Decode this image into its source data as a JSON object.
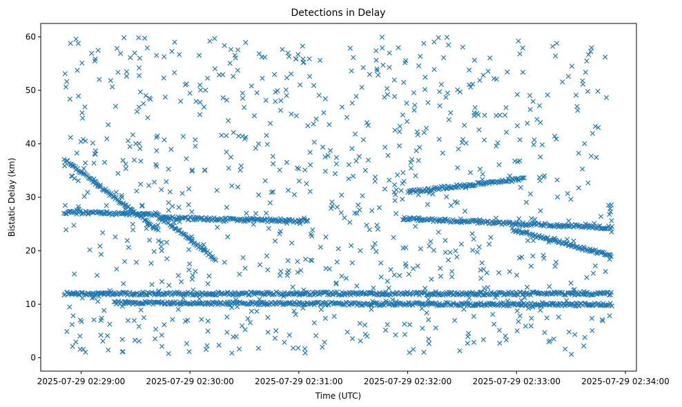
{
  "chart_data": {
    "type": "scatter",
    "title": "Detections in Delay",
    "xlabel": "Time (UTC)",
    "ylabel": "Bistatic Delay (km)",
    "marker": "x",
    "color": "#1f77b4",
    "xlim_seconds": [
      -45,
      5
    ],
    "ylim": [
      -2.5,
      62.5
    ],
    "x_ticks": [
      {
        "t": -44,
        "label": "2025-07-29 02:29:00"
      },
      {
        "t": -34,
        "label": "2025-07-29 02:30:00"
      },
      {
        "t": -24,
        "label": "2025-07-29 02:31:00"
      },
      {
        "t": -14,
        "label": "2025-07-29 02:32:00"
      },
      {
        "t": -4,
        "label": "2025-07-29 02:33:00"
      },
      {
        "t": 6,
        "label": "2025-07-29 02:34:00"
      }
    ],
    "y_ticks": [
      0,
      10,
      20,
      30,
      40,
      50,
      60
    ],
    "tracks": [
      {
        "name": "track-descending-a",
        "t": [
          0.0,
          9.4
        ],
        "y": [
          37.0,
          24.0
        ]
      },
      {
        "name": "track-descending-b",
        "t": [
          9.8,
          15.2
        ],
        "y": [
          26.0,
          18.5
        ]
      },
      {
        "name": "track-flat-26",
        "t": [
          9.5,
          24.5
        ],
        "y": [
          26.2,
          25.5
        ]
      },
      {
        "name": "track-ascending",
        "t": [
          34.5,
          46.2
        ],
        "y": [
          31.0,
          33.5
        ]
      },
      {
        "name": "track-flat-25",
        "t": [
          34.0,
          55.0
        ],
        "y": [
          26.0,
          24.3
        ]
      },
      {
        "name": "track-descending-c",
        "t": [
          45.0,
          55.0
        ],
        "y": [
          24.0,
          19.0
        ]
      },
      {
        "name": "track-flat-27",
        "t": [
          0.0,
          9.5
        ],
        "y": [
          27.2,
          26.8
        ]
      },
      {
        "name": "track-flat-12",
        "t": [
          0.0,
          55.0
        ],
        "y": [
          12.0,
          12.0
        ]
      },
      {
        "name": "track-flat-10",
        "t": [
          5.0,
          55.0
        ],
        "y": [
          10.3,
          9.9
        ]
      }
    ]
  }
}
